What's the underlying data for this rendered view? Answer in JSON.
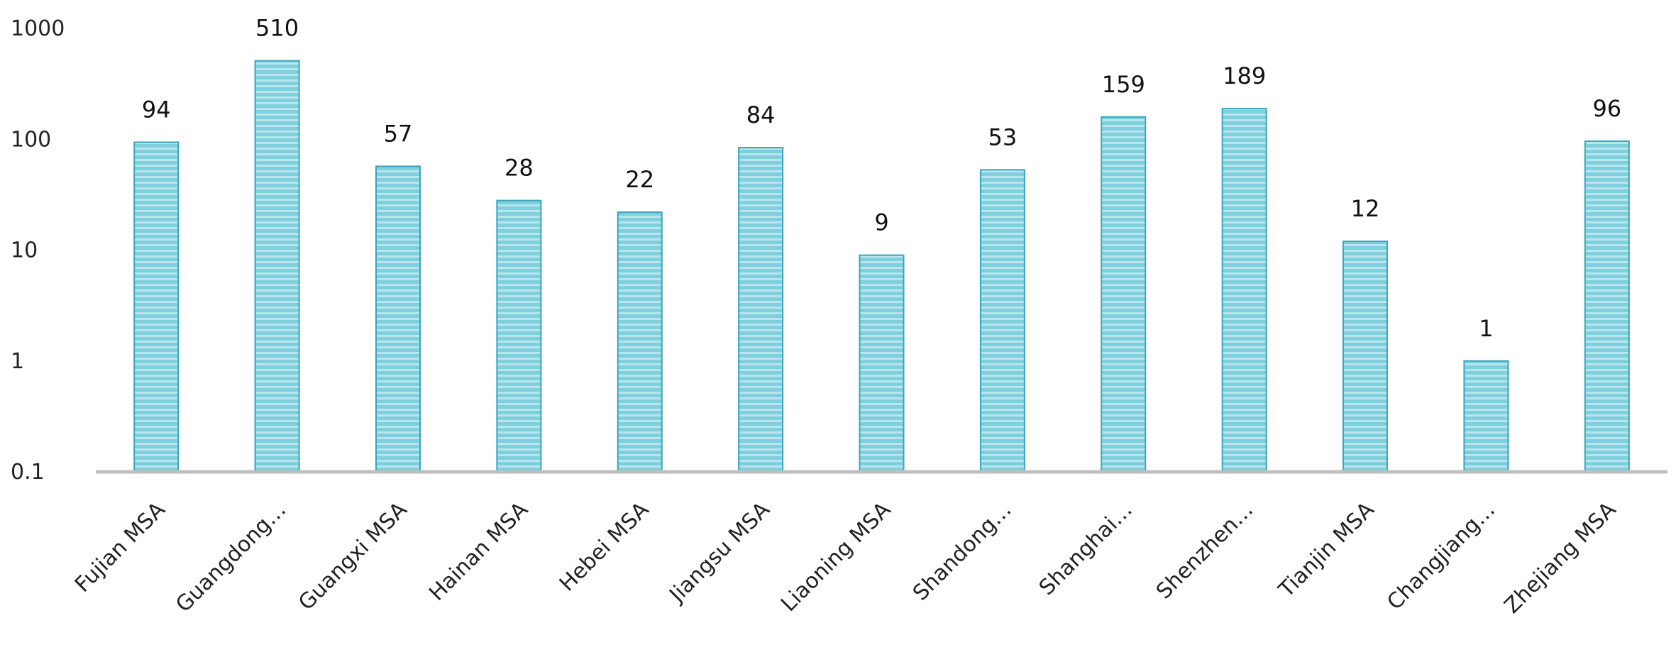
{
  "chart_data": {
    "type": "bar",
    "categories": [
      "Fujian MSA",
      "Guangdong…",
      "Guangxi MSA",
      "Hainan MSA",
      "Hebei MSA",
      "Jiangsu MSA",
      "Liaoning MSA",
      "Shandong…",
      "Shanghai…",
      "Shenzhen…",
      "Tianjin MSA",
      "Changjiang…",
      "Zhejiang MSA"
    ],
    "values": [
      94,
      510,
      57,
      28,
      22,
      84,
      9,
      53,
      159,
      189,
      12,
      1,
      96
    ],
    "data_labels": [
      "94",
      "510",
      "57",
      "28",
      "22",
      "84",
      "9",
      "53",
      "159",
      "189",
      "12",
      "1",
      "96"
    ],
    "y_scale": "log10",
    "ylim": [
      0.1,
      1000
    ],
    "y_ticks": [
      {
        "value": 1000,
        "label": "1000"
      },
      {
        "value": 100,
        "label": "100"
      },
      {
        "value": 10,
        "label": "10"
      },
      {
        "value": 1,
        "label": "1"
      },
      {
        "value": 0.1,
        "label": "0.1"
      }
    ],
    "grid": false,
    "legend": "none",
    "bar_color": "#7fcfdd",
    "bar_stripe_color": "#b9e6ee",
    "bar_edge_color": "#3aa5bc",
    "axis_color": "#bfbfbf"
  }
}
